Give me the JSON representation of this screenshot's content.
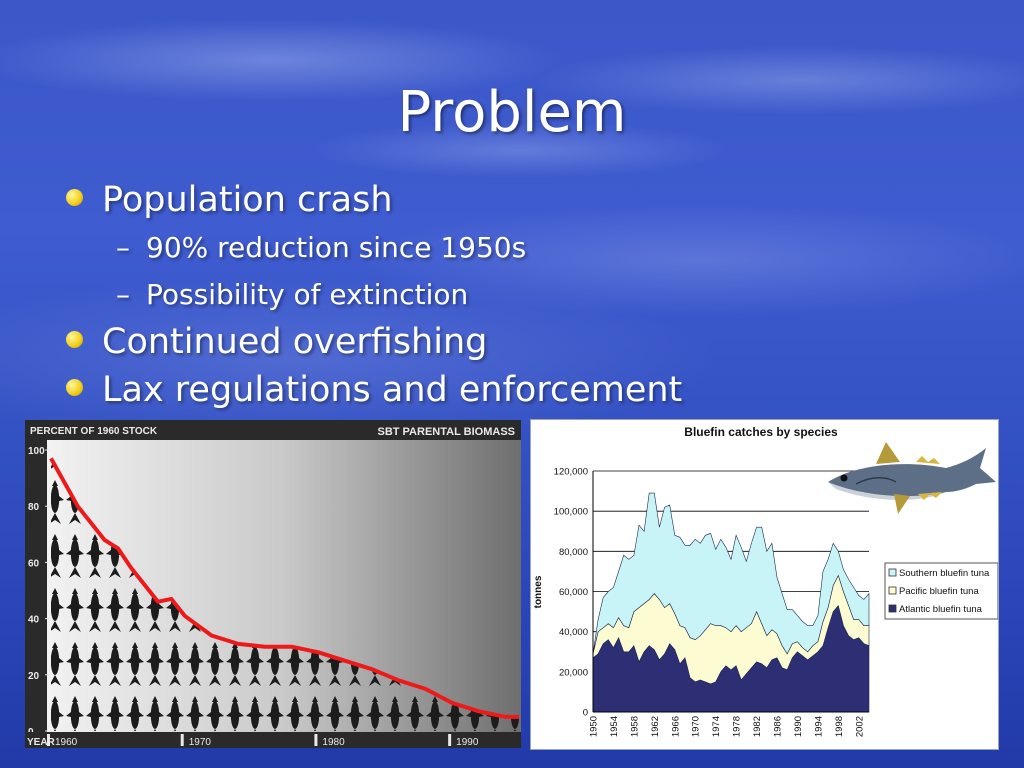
{
  "slide": {
    "title": "Problem",
    "bullets": [
      {
        "text": "Population crash",
        "subs": [
          "90% reduction since 1950s",
          "Possibility of extinction"
        ]
      },
      {
        "text": "Continued overfishing",
        "subs": []
      },
      {
        "text": "Lax regulations and enforcement",
        "subs": []
      }
    ],
    "sub_marker": "–"
  },
  "colors": {
    "bullet": "#f2cc12",
    "line_red": "#ee1a1a",
    "southern": "#c8f4f8",
    "pacific": "#fcfbd2",
    "atlantic": "#2e2e74"
  },
  "chart_data": [
    {
      "type": "line",
      "title": "SBT PARENTAL BIOMASS",
      "ylabel": "PERCENT OF 1960 STOCK",
      "xlabel": "YEAR",
      "x_ticks": [
        "1960",
        "1970",
        "1980",
        "1990"
      ],
      "y_ticks": [
        "100",
        "80",
        "60",
        "40",
        "20",
        "0"
      ],
      "ylim": [
        0,
        100
      ],
      "xlim": [
        1960,
        1995
      ],
      "x": [
        1960,
        1962,
        1964,
        1965,
        1966,
        1968,
        1969,
        1970,
        1972,
        1974,
        1976,
        1978,
        1980,
        1982,
        1984,
        1986,
        1988,
        1990,
        1992,
        1994,
        1995
      ],
      "values": [
        97,
        80,
        68,
        65,
        58,
        46,
        47,
        41,
        34,
        31,
        30,
        30,
        28,
        25,
        22,
        18,
        15,
        10,
        7,
        5,
        5
      ]
    },
    {
      "type": "area",
      "title": "Bluefin catches by species",
      "ylabel": "tonnes",
      "ylim": [
        0,
        120000
      ],
      "y_ticks": [
        "0",
        "20,000",
        "40,000",
        "60,000",
        "80,000",
        "100,000",
        "120,000"
      ],
      "x_ticks": [
        "1950",
        "1954",
        "1958",
        "1962",
        "1966",
        "1970",
        "1974",
        "1978",
        "1982",
        "1986",
        "1990",
        "1994",
        "1998",
        "2002"
      ],
      "x": [
        1950,
        1951,
        1952,
        1953,
        1954,
        1955,
        1956,
        1957,
        1958,
        1959,
        1960,
        1961,
        1962,
        1963,
        1964,
        1965,
        1966,
        1967,
        1968,
        1969,
        1970,
        1971,
        1972,
        1973,
        1974,
        1975,
        1976,
        1977,
        1978,
        1979,
        1980,
        1981,
        1982,
        1983,
        1984,
        1985,
        1986,
        1987,
        1988,
        1989,
        1990,
        1991,
        1992,
        1993,
        1994,
        1995,
        1996,
        1997,
        1998,
        1999,
        2000,
        2001,
        2002,
        2003,
        2004
      ],
      "legend_position": "right",
      "series": [
        {
          "name": "Atlantic bluefin tuna",
          "values": [
            27000,
            29000,
            34000,
            36000,
            32000,
            37000,
            30000,
            30000,
            33000,
            25000,
            30000,
            33000,
            31000,
            26000,
            29000,
            34000,
            31000,
            24000,
            27000,
            17000,
            15000,
            16000,
            15000,
            14000,
            15000,
            20000,
            23000,
            21000,
            23000,
            16000,
            19000,
            22000,
            25000,
            24000,
            22000,
            26000,
            27000,
            22000,
            21000,
            27000,
            30000,
            28000,
            26000,
            28000,
            30000,
            33000,
            42000,
            50000,
            53000,
            43000,
            38000,
            36000,
            37000,
            34000,
            33000
          ]
        },
        {
          "name": "Pacific bluefin tuna",
          "values": [
            2000,
            11000,
            8000,
            8000,
            10000,
            10000,
            13000,
            12000,
            17000,
            27000,
            24000,
            23000,
            28000,
            30000,
            23000,
            20000,
            18000,
            19000,
            15000,
            20000,
            21000,
            22000,
            26000,
            30000,
            28000,
            23000,
            19000,
            19000,
            20000,
            24000,
            23000,
            22000,
            25000,
            20000,
            16000,
            15000,
            12000,
            11000,
            8000,
            7000,
            5000,
            4000,
            4000,
            5000,
            5000,
            12000,
            10000,
            13000,
            15000,
            17000,
            15000,
            10000,
            9000,
            9000,
            10000
          ]
        },
        {
          "name": "Southern bluefin tuna",
          "values": [
            0,
            6000,
            15000,
            16000,
            20000,
            23000,
            35000,
            34000,
            28000,
            41000,
            36000,
            53000,
            50000,
            36000,
            50000,
            49000,
            39000,
            44000,
            41000,
            46000,
            50000,
            46000,
            47000,
            45000,
            38000,
            43000,
            40000,
            36000,
            45000,
            42000,
            33000,
            40000,
            42000,
            48000,
            42000,
            43000,
            28000,
            26000,
            22000,
            17000,
            13000,
            13000,
            13000,
            10000,
            13000,
            25000,
            24000,
            21000,
            12000,
            11000,
            13000,
            16000,
            12000,
            13000,
            16000
          ]
        }
      ]
    }
  ]
}
